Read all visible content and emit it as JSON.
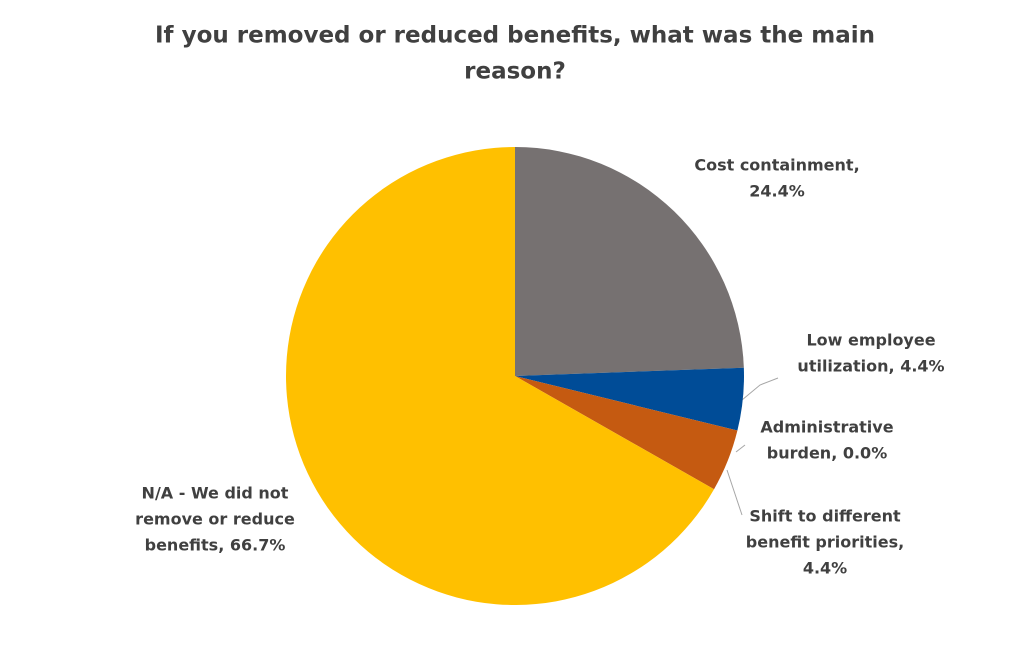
{
  "chart_data": {
    "type": "pie",
    "title": [
      "If you removed or reduced benefits, what was the main",
      "reason?"
    ],
    "values": [
      24.4,
      4.4,
      0.0,
      4.4,
      66.7
    ],
    "value_labels": [
      [
        "Cost containment,",
        "24.4%"
      ],
      [
        "Low employee",
        "utilization, 4.4%"
      ],
      [
        "Administrative",
        "burden, 0.0%"
      ],
      [
        "Shift to different",
        "benefit priorities,",
        "4.4%"
      ],
      [
        "N/A - We did not",
        "remove or reduce",
        "benefits, 66.7%"
      ]
    ],
    "colors": [
      "#767171",
      "#004c97",
      "#70ad47",
      "#c55a11",
      "#ffc000"
    ]
  }
}
